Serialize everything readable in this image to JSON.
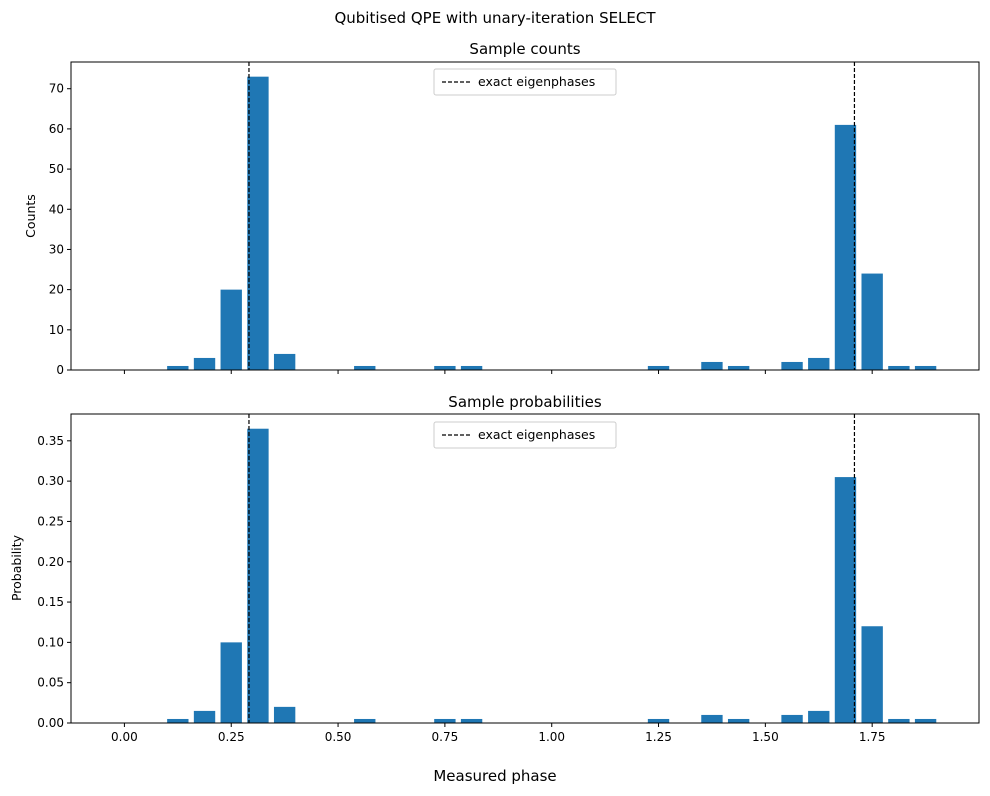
{
  "figure": {
    "title": "Qubitised QPE with unary-iteration SELECT",
    "xlabel": "Measured phase"
  },
  "legend": {
    "label": "exact eigenphases"
  },
  "colors": {
    "bar": "#1f77b4",
    "eigenline": "#000000"
  },
  "chart_data": [
    {
      "type": "bar",
      "title": "Sample counts",
      "ylabel": "Counts",
      "xlim": [
        -0.125,
        2.0
      ],
      "ylim": [
        0,
        76.65
      ],
      "xticks": [
        0.0,
        0.25,
        0.5,
        0.75,
        1.0,
        1.25,
        1.5,
        1.75
      ],
      "xtick_labels_visible": false,
      "yticks": [
        0,
        10,
        20,
        30,
        40,
        50,
        60,
        70
      ],
      "bar_width": 0.05,
      "x": [
        0.125,
        0.1875,
        0.25,
        0.3125,
        0.375,
        0.5625,
        0.75,
        0.8125,
        1.25,
        1.375,
        1.4375,
        1.5625,
        1.625,
        1.6875,
        1.75,
        1.8125,
        1.875
      ],
      "values": [
        1,
        3,
        20,
        73,
        4,
        1,
        1,
        1,
        1,
        2,
        1,
        2,
        3,
        61,
        24,
        1,
        1
      ],
      "eigenphases": [
        0.2915,
        1.7085
      ],
      "legend_position": "upper center"
    },
    {
      "type": "bar",
      "title": "Sample probabilities",
      "ylabel": "Probability",
      "xlim": [
        -0.125,
        2.0
      ],
      "ylim": [
        0,
        0.38325
      ],
      "xticks": [
        0.0,
        0.25,
        0.5,
        0.75,
        1.0,
        1.25,
        1.5,
        1.75
      ],
      "xtick_labels": [
        "0.00",
        "0.25",
        "0.50",
        "0.75",
        "1.00",
        "1.25",
        "1.50",
        "1.75"
      ],
      "yticks": [
        0.0,
        0.05,
        0.1,
        0.15,
        0.2,
        0.25,
        0.3,
        0.35
      ],
      "ytick_labels": [
        "0.00",
        "0.05",
        "0.10",
        "0.15",
        "0.20",
        "0.25",
        "0.30",
        "0.35"
      ],
      "bar_width": 0.05,
      "x": [
        0.125,
        0.1875,
        0.25,
        0.3125,
        0.375,
        0.5625,
        0.75,
        0.8125,
        1.25,
        1.375,
        1.4375,
        1.5625,
        1.625,
        1.6875,
        1.75,
        1.8125,
        1.875
      ],
      "values": [
        0.005,
        0.015,
        0.1,
        0.365,
        0.02,
        0.005,
        0.005,
        0.005,
        0.005,
        0.01,
        0.005,
        0.01,
        0.015,
        0.305,
        0.12,
        0.005,
        0.005
      ],
      "eigenphases": [
        0.2915,
        1.7085
      ],
      "legend_position": "upper center"
    }
  ]
}
